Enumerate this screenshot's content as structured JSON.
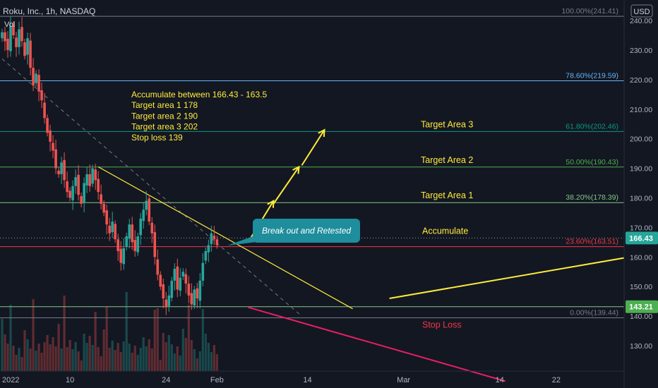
{
  "header": {
    "symbol_title": "Roku, Inc., 1h, NASDAQ",
    "volume_label": "Vol",
    "currency": "USD"
  },
  "colors": {
    "background": "#131722",
    "candle_up": "#26a69a",
    "candle_down": "#ef5350",
    "fib_0": "#787b86",
    "fib_236": "#f23645",
    "fib_382": "#81c784",
    "fib_50": "#4caf50",
    "fib_618": "#089981",
    "fib_786": "#64b5f6",
    "fib_100": "#787b86",
    "annotation_yellow": "#ffeb3b",
    "stop_loss_red": "#f23645",
    "trend_pink": "#e91e63",
    "callout_teal": "#1e8d9c",
    "price_tag_current": "#26a69a",
    "price_tag_low": "#4caf50"
  },
  "chart_data": {
    "type": "candlestick",
    "title": "Roku, Inc., 1h, NASDAQ",
    "ylim": [
      120,
      242
    ],
    "y_ticks": [
      130,
      140,
      150,
      160,
      170,
      180,
      190,
      200,
      210,
      220,
      230,
      240
    ],
    "x_ticks": [
      {
        "label": "2022",
        "idx": 0
      },
      {
        "label": "10",
        "idx": 24
      },
      {
        "label": "24",
        "idx": 58
      },
      {
        "label": "Feb",
        "idx": 76
      },
      {
        "label": "14",
        "idx": 108
      },
      {
        "label": "Mar",
        "idx": 142
      },
      {
        "label": "14",
        "idx": 176
      },
      {
        "label": "22",
        "idx": 196
      }
    ],
    "x_range": [
      0,
      220
    ],
    "closes": [
      236,
      233,
      230,
      238,
      235,
      231,
      237,
      233,
      228,
      234,
      224,
      218,
      222,
      216,
      213,
      207,
      202,
      199,
      196,
      190,
      188,
      192,
      186,
      182,
      180,
      184,
      187,
      181,
      178,
      185,
      188,
      184,
      190,
      186,
      182,
      178,
      175,
      171,
      168,
      172,
      166,
      162,
      158,
      163,
      167,
      171,
      165,
      162,
      167,
      173,
      176,
      179,
      172,
      168,
      160,
      154,
      150,
      146,
      143,
      147,
      152,
      156,
      149,
      153,
      155,
      151,
      147,
      144,
      149,
      146,
      152,
      158,
      162,
      164,
      168,
      166,
      164
    ],
    "fib_levels": [
      {
        "label": "100.00%(241.41)",
        "price": 241.41,
        "color_key": "fib_100"
      },
      {
        "label": "78.60%(219.59)",
        "price": 219.59,
        "color_key": "fib_786"
      },
      {
        "label": "61.80%(202.46)",
        "price": 202.46,
        "color_key": "fib_618"
      },
      {
        "label": "50.00%(190.43)",
        "price": 190.43,
        "color_key": "fib_50"
      },
      {
        "label": "38.20%(178.39)",
        "price": 178.39,
        "color_key": "fib_382"
      },
      {
        "label": "23.60%(163.51)",
        "price": 163.51,
        "color_key": "fib_236"
      },
      {
        "label": "0.00%(139.44)",
        "price": 139.44,
        "color_key": "fib_0"
      }
    ],
    "extra_lines": [
      {
        "price": 166.43,
        "style": "dotted"
      },
      {
        "price": 143.21,
        "style": "solid"
      }
    ],
    "price_tags": [
      {
        "label": "166.43",
        "price": 166.43,
        "color_key": "price_tag_current"
      },
      {
        "label": "143.21",
        "price": 143.21,
        "color_key": "price_tag_low"
      }
    ],
    "level_labels": [
      {
        "text": "Target Area 3",
        "price": 202.46,
        "color_key": "annotation_yellow"
      },
      {
        "text": "Target Area 2",
        "price": 190.43,
        "color_key": "annotation_yellow"
      },
      {
        "text": "Target Area 1",
        "price": 178.39,
        "color_key": "annotation_yellow"
      },
      {
        "text": "Accumulate",
        "price": 166.43,
        "color_key": "annotation_yellow"
      },
      {
        "text": "Stop Loss",
        "price": 139.44,
        "color_key": "stop_loss_red"
      }
    ],
    "notes": [
      "Accumulate between 166.43 - 163.5",
      "Target area 1 178",
      "Target area 2 190",
      "Target area 3 202",
      "Stop loss 139"
    ],
    "callout": "Break out and Retested",
    "trendlines": [
      {
        "name": "descending-resistance",
        "from": [
          34,
          190.5
        ],
        "to": [
          124,
          142.5
        ],
        "color_key": "annotation_yellow",
        "style": "solid"
      },
      {
        "name": "diagonal-guide",
        "from": [
          0,
          227
        ],
        "to": [
          106,
          140
        ],
        "color_key": "fib_0",
        "style": "dashed"
      },
      {
        "name": "long-term-support",
        "from": [
          137,
          146
        ],
        "to": [
          240,
          163
        ],
        "color_key": "annotation_yellow",
        "style": "solid"
      },
      {
        "name": "falling-support",
        "from": [
          87,
          143
        ],
        "to": [
          178,
          118
        ],
        "color_key": "trend_pink",
        "style": "solid"
      }
    ],
    "arrows": [
      {
        "from": [
          87,
          165
        ],
        "to": [
          96,
          179
        ]
      },
      {
        "from": [
          96,
          178
        ],
        "to": [
          105,
          190.5
        ]
      },
      {
        "from": [
          106,
          191
        ],
        "to": [
          114,
          203
        ]
      }
    ]
  }
}
